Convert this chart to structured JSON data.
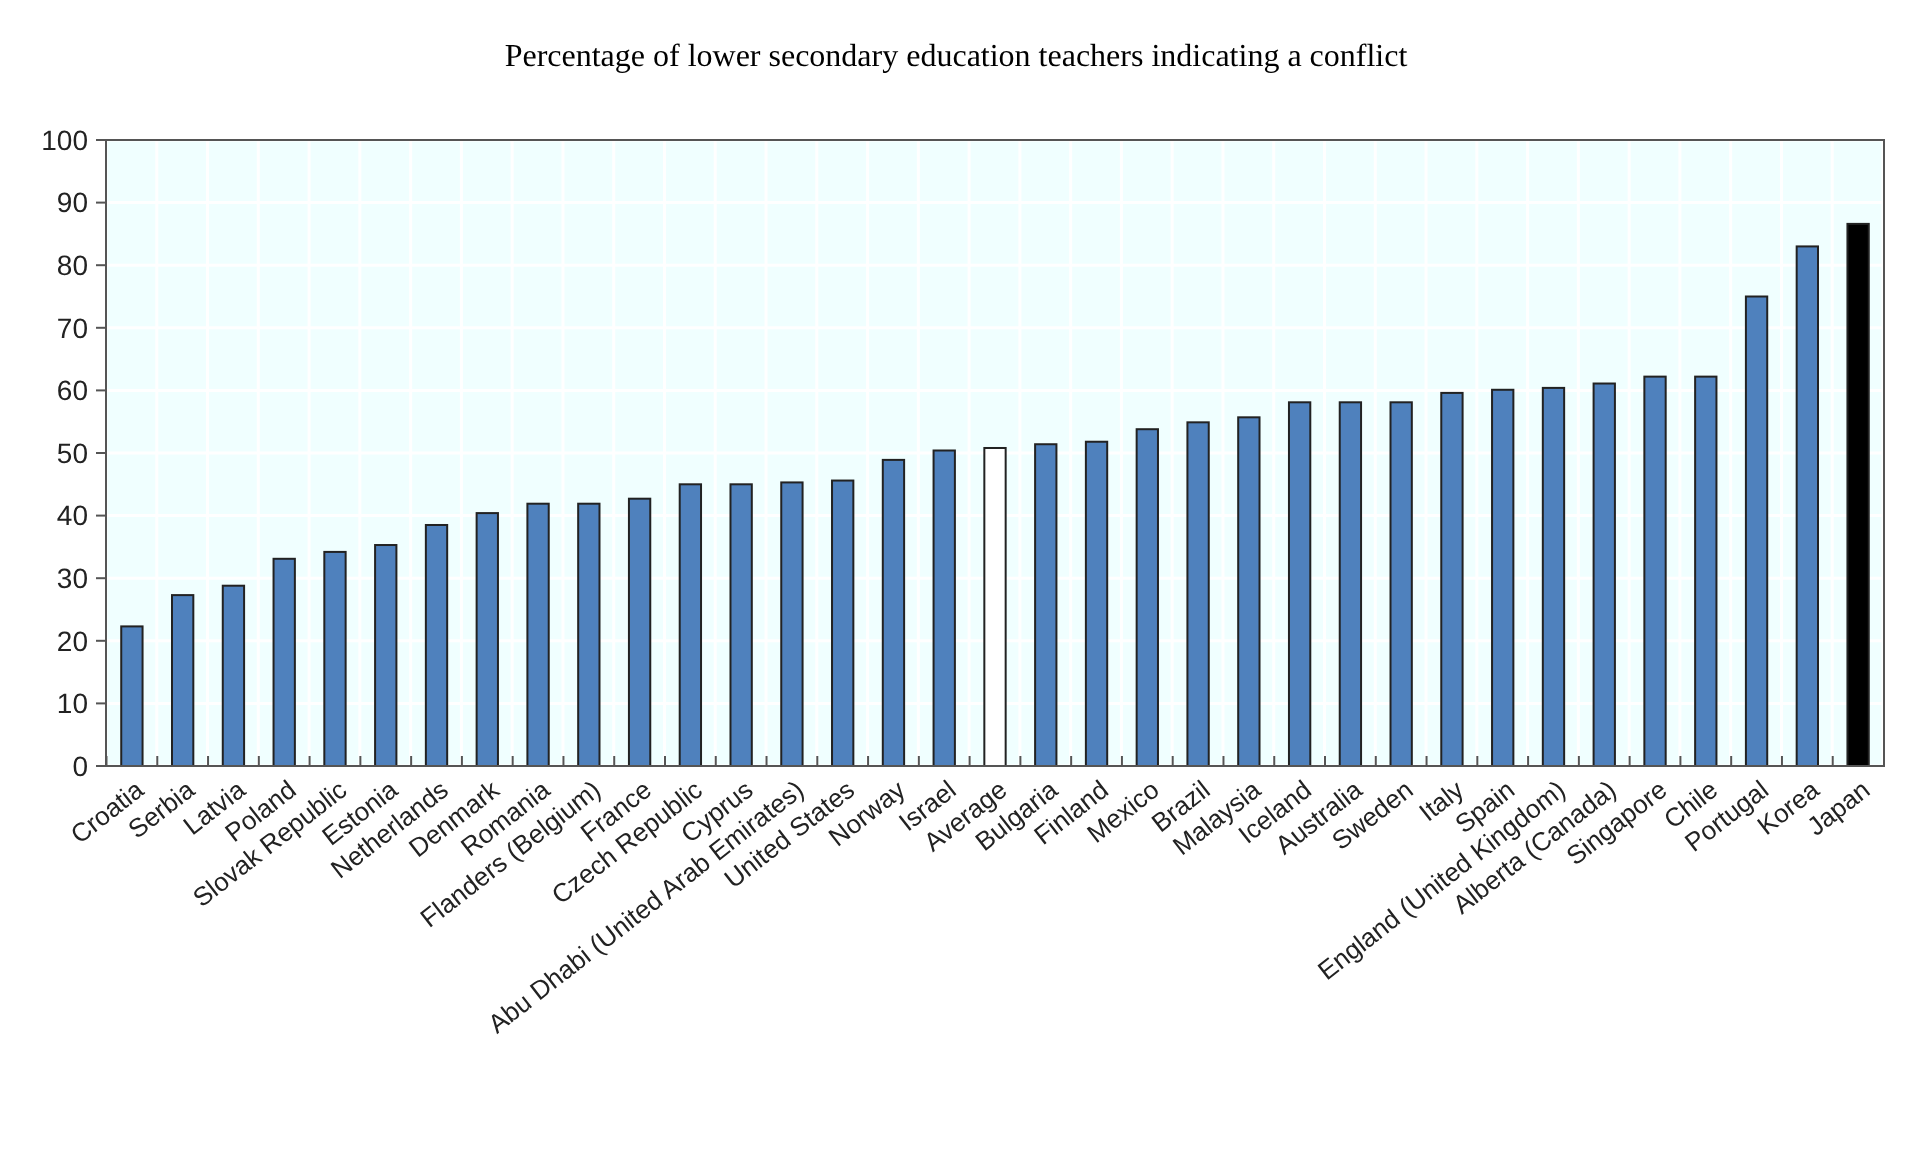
{
  "chart_data": {
    "type": "bar",
    "title": "Percentage of lower secondary education teachers indicating a conflict",
    "categories": [
      "Croatia",
      "Serbia",
      "Latvia",
      "Poland",
      "Slovak Republic",
      "Estonia",
      "Netherlands",
      "Denmark",
      "Romania",
      "Flanders (Belgium)",
      "France",
      "Czech Republic",
      "Cyprus",
      "Abu Dhabi (United Arab Emirates)",
      "United States",
      "Norway",
      "Israel",
      "Average",
      "Bulgaria",
      "Finland",
      "Mexico",
      "Brazil",
      "Malaysia",
      "Iceland",
      "Australia",
      "Sweden",
      "Italy",
      "Spain",
      "England (United Kingdom)",
      "Alberta (Canada)",
      "Singapore",
      "Chile",
      "Portugal",
      "Korea",
      "Japan"
    ],
    "values": [
      22.3,
      27.3,
      28.8,
      33.1,
      34.2,
      35.3,
      38.5,
      40.4,
      41.9,
      41.9,
      42.7,
      45.0,
      45.0,
      45.3,
      45.6,
      48.9,
      50.4,
      50.8,
      51.4,
      51.8,
      53.8,
      54.9,
      55.7,
      58.1,
      58.1,
      58.1,
      59.6,
      60.1,
      60.4,
      61.1,
      62.2,
      62.2,
      75.0,
      83.0,
      86.6
    ],
    "colors": [
      "#4f81bd",
      "#4f81bd",
      "#4f81bd",
      "#4f81bd",
      "#4f81bd",
      "#4f81bd",
      "#4f81bd",
      "#4f81bd",
      "#4f81bd",
      "#4f81bd",
      "#4f81bd",
      "#4f81bd",
      "#4f81bd",
      "#4f81bd",
      "#4f81bd",
      "#4f81bd",
      "#4f81bd",
      "#ffffff",
      "#4f81bd",
      "#4f81bd",
      "#4f81bd",
      "#4f81bd",
      "#4f81bd",
      "#4f81bd",
      "#4f81bd",
      "#4f81bd",
      "#4f81bd",
      "#4f81bd",
      "#4f81bd",
      "#4f81bd",
      "#4f81bd",
      "#4f81bd",
      "#4f81bd",
      "#4f81bd",
      "#000000"
    ],
    "ylim": [
      0,
      100
    ],
    "yticks": [
      0,
      10,
      20,
      30,
      40,
      50,
      60,
      70,
      80,
      90,
      100
    ],
    "grid": true
  }
}
